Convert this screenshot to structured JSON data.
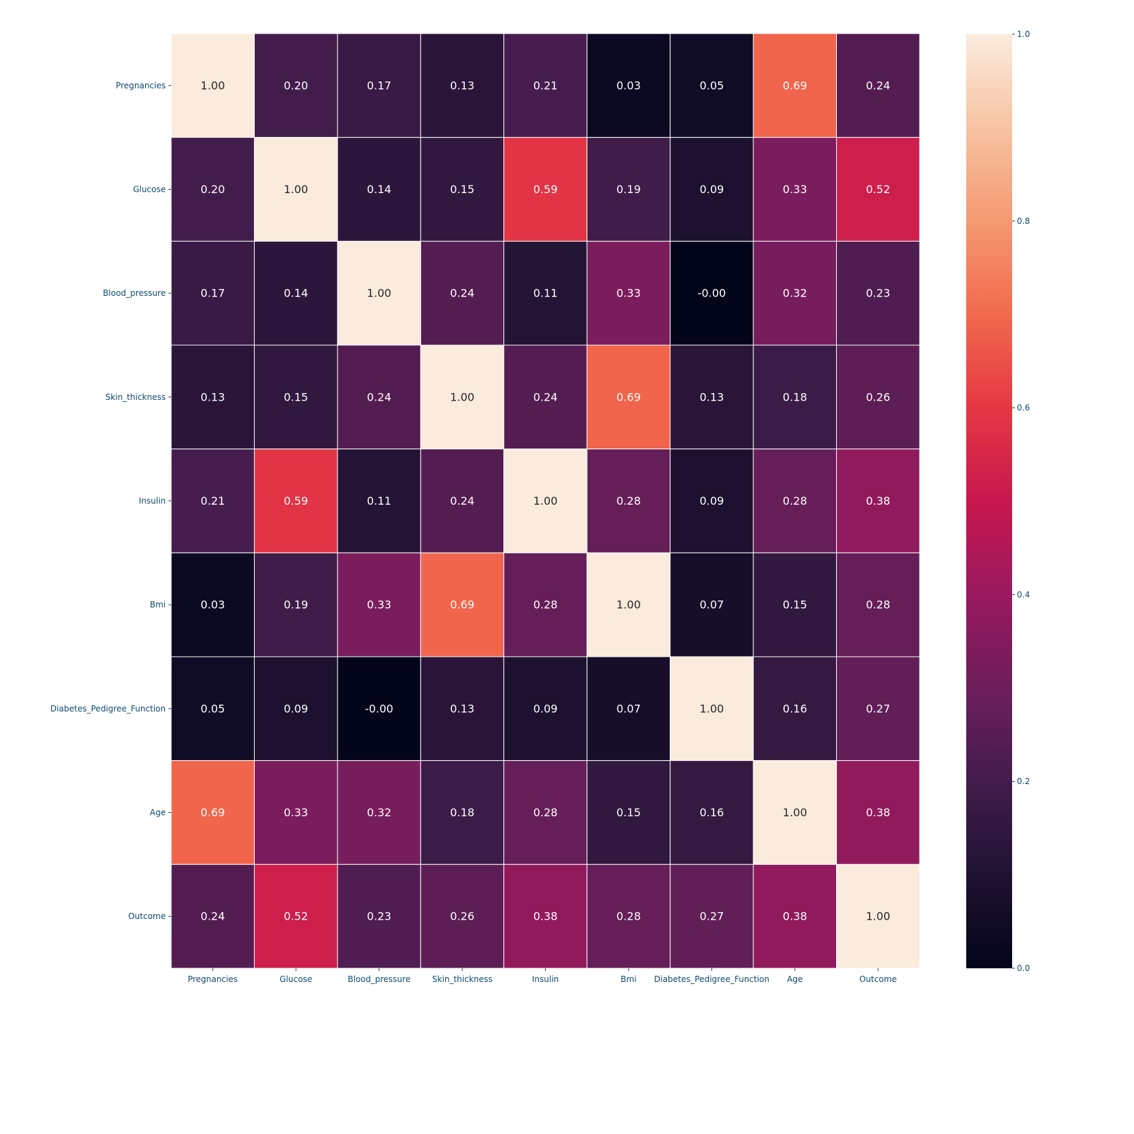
{
  "chart_data": {
    "type": "heatmap",
    "title": "",
    "xlabel": "",
    "ylabel": "",
    "categories": [
      "Pregnancies",
      "Glucose",
      "Blood_pressure",
      "Skin_thickness",
      "Insulin",
      "Bmi",
      "Diabetes_Pedigree_Function",
      "Age",
      "Outcome"
    ],
    "values": [
      [
        1.0,
        0.2,
        0.17,
        0.13,
        0.21,
        0.03,
        0.05,
        0.69,
        0.24
      ],
      [
        0.2,
        1.0,
        0.14,
        0.15,
        0.59,
        0.19,
        0.09,
        0.33,
        0.52
      ],
      [
        0.17,
        0.14,
        1.0,
        0.24,
        0.11,
        0.33,
        -0.0,
        0.32,
        0.23
      ],
      [
        0.13,
        0.15,
        0.24,
        1.0,
        0.24,
        0.69,
        0.13,
        0.18,
        0.26
      ],
      [
        0.21,
        0.59,
        0.11,
        0.24,
        1.0,
        0.28,
        0.09,
        0.28,
        0.38
      ],
      [
        0.03,
        0.19,
        0.33,
        0.69,
        0.28,
        1.0,
        0.07,
        0.15,
        0.28
      ],
      [
        0.05,
        0.09,
        -0.0,
        0.13,
        0.09,
        0.07,
        1.0,
        0.16,
        0.27
      ],
      [
        0.69,
        0.33,
        0.32,
        0.18,
        0.28,
        0.15,
        0.16,
        1.0,
        0.38
      ],
      [
        0.24,
        0.52,
        0.23,
        0.26,
        0.38,
        0.28,
        0.27,
        0.38,
        1.0
      ]
    ],
    "value_format": "0.00",
    "colorbar": {
      "range": [
        0.0,
        1.0
      ],
      "ticks": [
        "0.0",
        "0.2",
        "0.4",
        "0.6",
        "0.8",
        "1.0"
      ],
      "colormap": "rocket",
      "placement": "right"
    },
    "grid": false,
    "cell_border_color": "#ffffff",
    "tick_label_color": "#0b4a6e"
  }
}
